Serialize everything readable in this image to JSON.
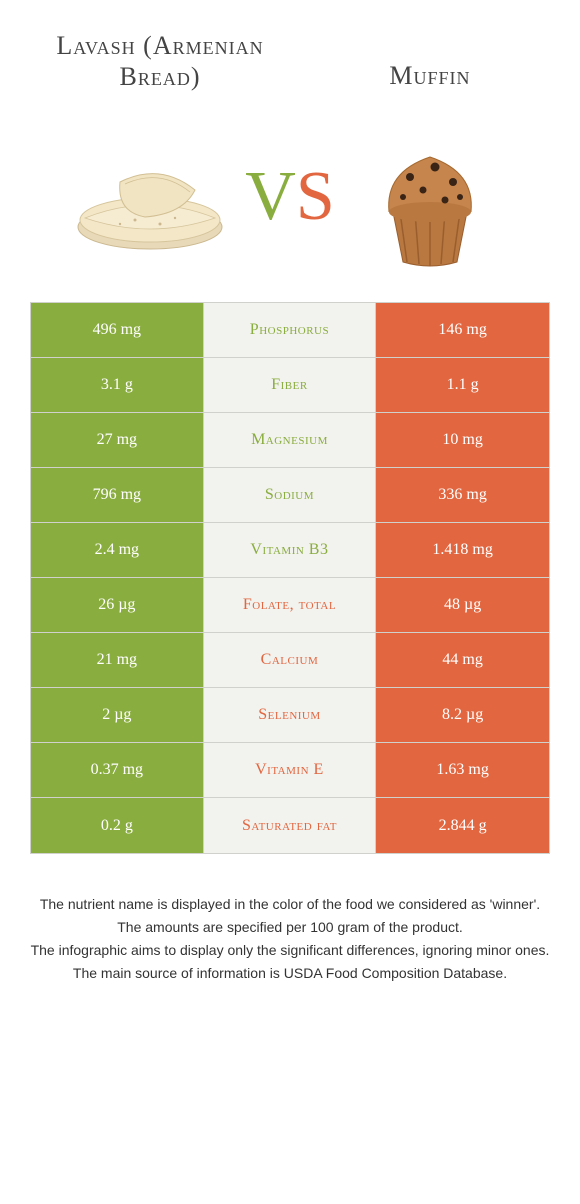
{
  "colors": {
    "left": "#8aad3f",
    "right": "#e2663f",
    "mid_bg": "#f2f2ee",
    "border": "#d0d0cc",
    "text": "#333333"
  },
  "header": {
    "left_title": "Lavash (Armenian Bread)",
    "right_title": "Muffin",
    "vs_v": "V",
    "vs_s": "S"
  },
  "rows": [
    {
      "nutrient": "Phosphorus",
      "left": "496 mg",
      "right": "146 mg",
      "winner": "left"
    },
    {
      "nutrient": "Fiber",
      "left": "3.1 g",
      "right": "1.1 g",
      "winner": "left"
    },
    {
      "nutrient": "Magnesium",
      "left": "27 mg",
      "right": "10 mg",
      "winner": "left"
    },
    {
      "nutrient": "Sodium",
      "left": "796 mg",
      "right": "336 mg",
      "winner": "left"
    },
    {
      "nutrient": "Vitamin B3",
      "left": "2.4 mg",
      "right": "1.418 mg",
      "winner": "left"
    },
    {
      "nutrient": "Folate, total",
      "left": "26 µg",
      "right": "48 µg",
      "winner": "right"
    },
    {
      "nutrient": "Calcium",
      "left": "21 mg",
      "right": "44 mg",
      "winner": "right"
    },
    {
      "nutrient": "Selenium",
      "left": "2 µg",
      "right": "8.2 µg",
      "winner": "right"
    },
    {
      "nutrient": "Vitamin E",
      "left": "0.37 mg",
      "right": "1.63 mg",
      "winner": "right"
    },
    {
      "nutrient": "Saturated fat",
      "left": "0.2 g",
      "right": "2.844 g",
      "winner": "right"
    }
  ],
  "footnotes": [
    "The nutrient name is displayed in the color of the food we considered as 'winner'.",
    "The amounts are specified per 100 gram of the product.",
    "The infographic aims to display only the significant differences, ignoring minor ones.",
    "The main source of information is USDA Food Composition Database."
  ]
}
